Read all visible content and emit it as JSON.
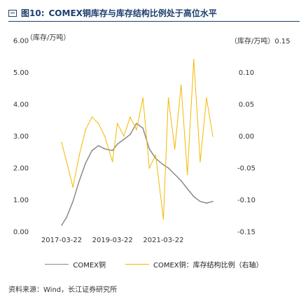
{
  "figure": {
    "label": "图10:",
    "title": "COMEX铜库存与库存结构比例处于高位水平"
  },
  "chart_data": {
    "type": "line",
    "title": "",
    "left_axis": {
      "unit_label": "（库存/万吨）",
      "ticks": [
        "6.00",
        "5.00",
        "4.00",
        "3.00",
        "2.00",
        "1.00",
        "0.00"
      ],
      "ylim": [
        0,
        6
      ]
    },
    "right_axis": {
      "unit_label": "（库存/万吨）0.15",
      "ticks": [
        "0.10",
        "0.05",
        "0.00",
        "-0.05",
        "-0.10",
        "-0.15"
      ],
      "ylim": [
        -0.15,
        0.15
      ]
    },
    "x_tick_labels": [
      "2017-03-22",
      "2019-03-22",
      "2021-03-22"
    ],
    "series": [
      {
        "name": "COMEX铜",
        "axis": "left",
        "color": "#8a8a8a",
        "points": [
          [
            "2017-03-22",
            0.2
          ],
          [
            "2017-06-01",
            0.45
          ],
          [
            "2017-09-01",
            0.95
          ],
          [
            "2017-12-01",
            1.6
          ],
          [
            "2018-03-01",
            2.15
          ],
          [
            "2018-06-01",
            2.55
          ],
          [
            "2018-09-01",
            2.7
          ],
          [
            "2018-12-01",
            2.6
          ],
          [
            "2019-03-22",
            2.55
          ],
          [
            "2019-06-01",
            2.75
          ],
          [
            "2019-09-01",
            2.9
          ],
          [
            "2019-12-01",
            3.05
          ],
          [
            "2020-03-01",
            3.4
          ],
          [
            "2020-06-01",
            3.25
          ],
          [
            "2020-09-01",
            2.6
          ],
          [
            "2020-12-01",
            2.3
          ],
          [
            "2021-03-22",
            2.1
          ],
          [
            "2021-06-01",
            2.0
          ],
          [
            "2021-09-01",
            1.8
          ],
          [
            "2021-12-01",
            1.6
          ],
          [
            "2022-03-01",
            1.35
          ],
          [
            "2022-06-01",
            1.1
          ],
          [
            "2022-09-01",
            0.95
          ],
          [
            "2022-12-01",
            0.9
          ],
          [
            "2023-03-01",
            0.95
          ]
        ]
      },
      {
        "name": "COMEX铜：库存结构比例（右轴）",
        "axis": "right",
        "color": "#f5b800",
        "points": [
          [
            "2017-03-22",
            -0.01
          ],
          [
            "2017-06-01",
            -0.04
          ],
          [
            "2017-09-01",
            -0.08
          ],
          [
            "2017-12-01",
            -0.03
          ],
          [
            "2018-03-01",
            0.01
          ],
          [
            "2018-06-01",
            0.03
          ],
          [
            "2018-09-01",
            0.02
          ],
          [
            "2018-12-01",
            0.0
          ],
          [
            "2019-03-22",
            -0.04
          ],
          [
            "2019-06-01",
            0.02
          ],
          [
            "2019-09-01",
            0.0
          ],
          [
            "2019-12-01",
            0.03
          ],
          [
            "2020-03-01",
            0.01
          ],
          [
            "2020-06-01",
            0.06
          ],
          [
            "2020-09-01",
            -0.05
          ],
          [
            "2020-12-01",
            -0.03
          ],
          [
            "2021-03-22",
            -0.13
          ],
          [
            "2021-06-01",
            0.06
          ],
          [
            "2021-09-01",
            -0.02
          ],
          [
            "2021-12-01",
            0.08
          ],
          [
            "2022-03-01",
            -0.06
          ],
          [
            "2022-06-01",
            0.12
          ],
          [
            "2022-09-01",
            -0.04
          ],
          [
            "2022-12-01",
            0.06
          ],
          [
            "2023-03-01",
            0.0
          ]
        ]
      }
    ],
    "legend": [
      "COMEX铜",
      "COMEX铜：库存结构比例（右轴）"
    ],
    "legend_position": "bottom",
    "grid": false
  },
  "source": "资料来源：Wind，长江证券研究所"
}
